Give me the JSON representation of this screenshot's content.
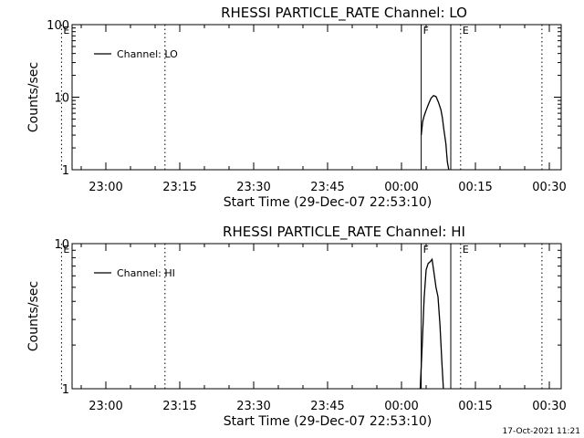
{
  "timestamp": "17-Oct-2021 11:21",
  "chart_data": [
    {
      "type": "line",
      "title": "RHESSI PARTICLE_RATE Channel: LO",
      "xlabel": "Start Time (29-Dec-07 22:53:10)",
      "ylabel": "Counts/sec",
      "yscale": "log",
      "xlim": [
        -11,
        35
      ],
      "ylim": [
        1,
        100
      ],
      "xticks": [
        {
          "value": 0,
          "label": "23:00"
        },
        {
          "value": 15,
          "label": "23:15"
        },
        {
          "value": 30,
          "label": "23:30"
        },
        {
          "value": 45,
          "label": "23:45"
        },
        {
          "value": 60,
          "label": "00:00"
        },
        {
          "value": 75,
          "label": "00:15"
        },
        {
          "value": 90,
          "label": "00:30"
        }
      ],
      "yticks": [
        {
          "value": 1,
          "label": "1"
        },
        {
          "value": 10,
          "label": "10"
        },
        {
          "value": 100,
          "label": "100"
        }
      ],
      "legend": {
        "label": "Channel: LO",
        "position": "top-left"
      },
      "markers": [
        {
          "x": -9,
          "label": "E",
          "style": "dotted"
        },
        {
          "x": 12,
          "label": "",
          "style": "dotted"
        },
        {
          "x": 64,
          "label": "F",
          "style": "solid"
        },
        {
          "x": 70,
          "label": "",
          "style": "solid"
        },
        {
          "x": 72,
          "label": "E",
          "style": "dotted"
        },
        {
          "x": 88.5,
          "label": "",
          "style": "dotted"
        }
      ],
      "series": [
        {
          "name": "Channel: LO",
          "x": [
            64.0,
            64.3,
            64.6,
            65.0,
            65.5,
            66.0,
            66.5,
            67.0,
            67.5,
            68.0,
            68.3,
            68.6,
            69.0,
            69.3,
            69.6
          ],
          "y": [
            3.0,
            4.6,
            5.5,
            6.6,
            8.1,
            9.7,
            10.5,
            10.2,
            8.5,
            6.7,
            5.2,
            3.6,
            2.3,
            1.3,
            1.0
          ]
        }
      ]
    },
    {
      "type": "line",
      "title": "RHESSI PARTICLE_RATE Channel: HI",
      "xlabel": "Start Time (29-Dec-07 22:53:10)",
      "ylabel": "Counts/sec",
      "yscale": "log",
      "xlim": [
        -11,
        35
      ],
      "ylim": [
        1,
        10
      ],
      "xticks": [
        {
          "value": 0,
          "label": "23:00"
        },
        {
          "value": 15,
          "label": "23:15"
        },
        {
          "value": 30,
          "label": "23:30"
        },
        {
          "value": 45,
          "label": "23:45"
        },
        {
          "value": 60,
          "label": "00:00"
        },
        {
          "value": 75,
          "label": "00:15"
        },
        {
          "value": 90,
          "label": "00:30"
        }
      ],
      "yticks": [
        {
          "value": 1,
          "label": "1"
        },
        {
          "value": 10,
          "label": "10"
        }
      ],
      "legend": {
        "label": "Channel: HI",
        "position": "top-left"
      },
      "markers": [
        {
          "x": -9,
          "label": "E",
          "style": "dotted"
        },
        {
          "x": 12,
          "label": "",
          "style": "dotted"
        },
        {
          "x": 64,
          "label": "F",
          "style": "solid"
        },
        {
          "x": 70,
          "label": "",
          "style": "solid"
        },
        {
          "x": 72,
          "label": "E",
          "style": "dotted"
        },
        {
          "x": 88.5,
          "label": "",
          "style": "dotted"
        }
      ],
      "series": [
        {
          "name": "Channel: HI",
          "x": [
            63.8,
            64.2,
            64.6,
            65.0,
            65.4,
            65.8,
            66.2,
            66.6,
            67.0,
            67.4,
            67.8,
            68.2,
            68.5
          ],
          "y": [
            1.0,
            2.0,
            4.2,
            6.6,
            7.3,
            7.5,
            7.8,
            6.3,
            5.0,
            4.3,
            2.8,
            1.5,
            1.0
          ]
        }
      ]
    }
  ]
}
